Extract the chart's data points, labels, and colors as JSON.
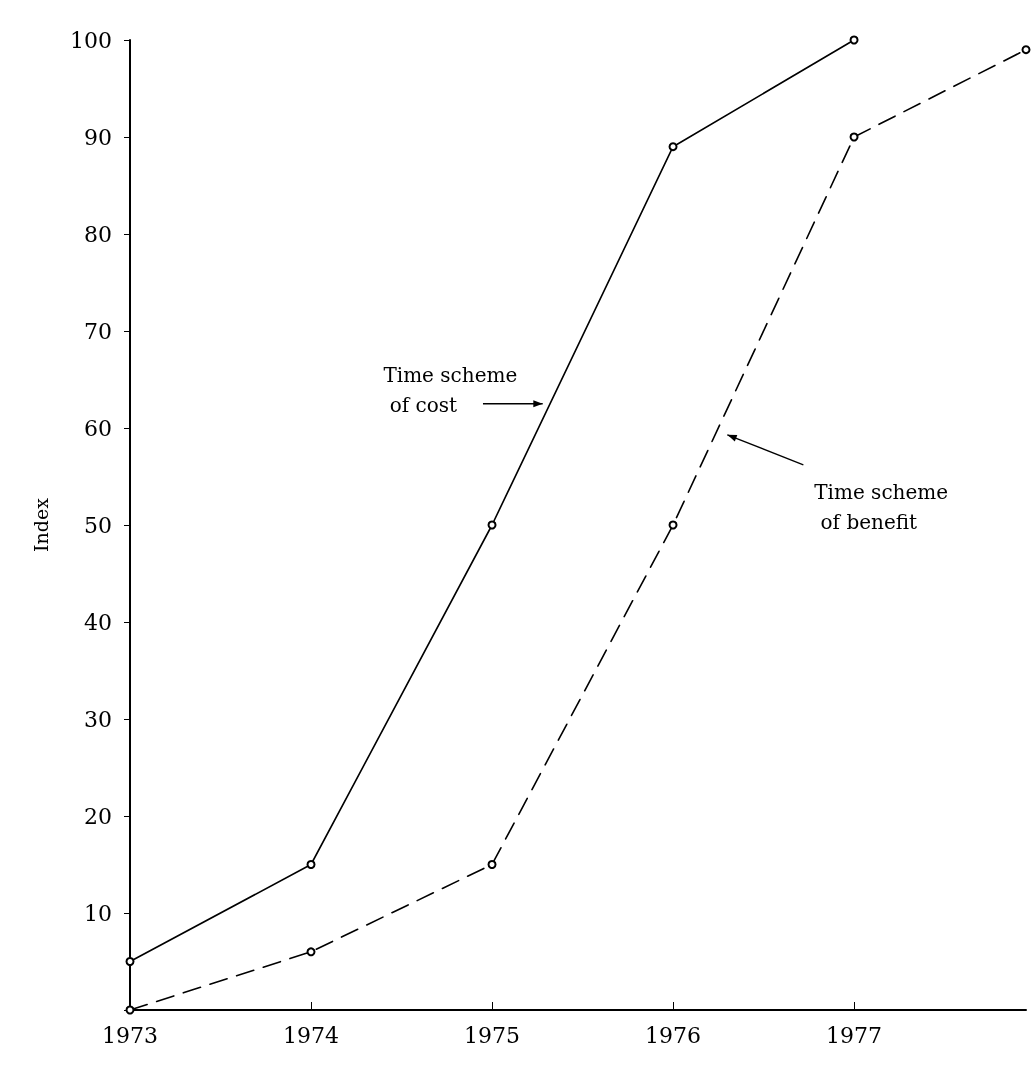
{
  "chart_data": {
    "type": "line",
    "ylabel": "Index",
    "xlim": [
      1973,
      1977.95
    ],
    "xticks": [
      1973,
      1974,
      1975,
      1976,
      1977
    ],
    "ylim": [
      0,
      100
    ],
    "yticks": [
      {
        "value": 0,
        "label": null
      },
      10,
      20,
      30,
      40,
      50,
      60,
      70,
      80,
      90,
      100
    ],
    "grid": false,
    "marker": "circle",
    "series": [
      {
        "color": "#000000",
        "line_style": "solid",
        "x": [
          1973,
          1974,
          1975,
          1976,
          1977
        ],
        "values": [
          5,
          15,
          50,
          89,
          100
        ]
      },
      {
        "color": "#000000",
        "line_style": "dashed",
        "x": [
          1973,
          1974,
          1975,
          1976,
          1977,
          1977.95
        ],
        "values": [
          0,
          6,
          15,
          50,
          90,
          99
        ]
      }
    ],
    "annotations": [
      "Time scheme of cost",
      "Time scheme of benefit"
    ]
  }
}
